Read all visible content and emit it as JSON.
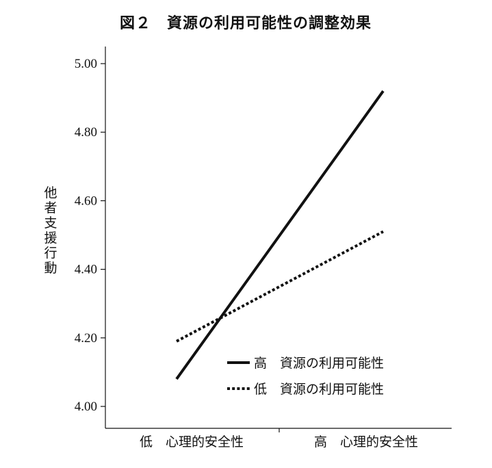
{
  "chart_data": {
    "type": "line",
    "title": "図２　資源の利用可能性の調整効果",
    "xlabel": "",
    "ylabel": "他者支援行動",
    "categories": [
      "低　心理的安全性",
      "高　心理的安全性"
    ],
    "ylim": [
      4.0,
      5.0
    ],
    "yticks": [
      "4.00",
      "4.20",
      "4.40",
      "4.60",
      "4.80",
      "5.00"
    ],
    "ytick_values": [
      4.0,
      4.2,
      4.4,
      4.6,
      4.8,
      5.0
    ],
    "grid": false,
    "legend_position": "bottom-right",
    "series": [
      {
        "name": "高　資源の利用可能性",
        "values": [
          4.08,
          4.92
        ],
        "line_style": "solid",
        "color": "#111111"
      },
      {
        "name": "低　資源の利用可能性",
        "values": [
          4.19,
          4.51
        ],
        "line_style": "dotted",
        "color": "#111111"
      }
    ]
  }
}
